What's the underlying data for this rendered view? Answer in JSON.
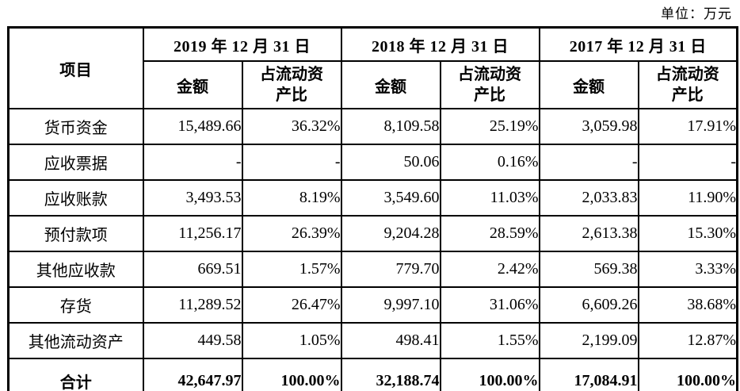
{
  "unit_label": "单位：万元",
  "table": {
    "item_header": "项目",
    "col_groups": [
      {
        "date": "2019 年 12 月 31 日"
      },
      {
        "date": "2018 年 12 月 31 日"
      },
      {
        "date": "2017 年 12 月 31 日"
      }
    ],
    "sub_headers": {
      "amount": "金额",
      "ratio": "占流动资产比"
    },
    "rows": [
      {
        "item": "货币资金",
        "values": [
          "15,489.66",
          "36.32%",
          "8,109.58",
          "25.19%",
          "3,059.98",
          "17.91%"
        ],
        "bold": false
      },
      {
        "item": "应收票据",
        "values": [
          "-",
          "-",
          "50.06",
          "0.16%",
          "-",
          "-"
        ],
        "bold": false
      },
      {
        "item": "应收账款",
        "values": [
          "3,493.53",
          "8.19%",
          "3,549.60",
          "11.03%",
          "2,033.83",
          "11.90%"
        ],
        "bold": false
      },
      {
        "item": "预付款项",
        "values": [
          "11,256.17",
          "26.39%",
          "9,204.28",
          "28.59%",
          "2,613.38",
          "15.30%"
        ],
        "bold": false
      },
      {
        "item": "其他应收款",
        "values": [
          "669.51",
          "1.57%",
          "779.70",
          "2.42%",
          "569.38",
          "3.33%"
        ],
        "bold": false
      },
      {
        "item": "存货",
        "values": [
          "11,289.52",
          "26.47%",
          "9,997.10",
          "31.06%",
          "6,609.26",
          "38.68%"
        ],
        "bold": false
      },
      {
        "item": "其他流动资产",
        "values": [
          "449.58",
          "1.05%",
          "498.41",
          "1.55%",
          "2,199.09",
          "12.87%"
        ],
        "bold": false
      },
      {
        "item": "合计",
        "values": [
          "42,647.97",
          "100.00%",
          "32,188.74",
          "100.00%",
          "17,084.91",
          "100.00%"
        ],
        "bold": true
      }
    ]
  }
}
